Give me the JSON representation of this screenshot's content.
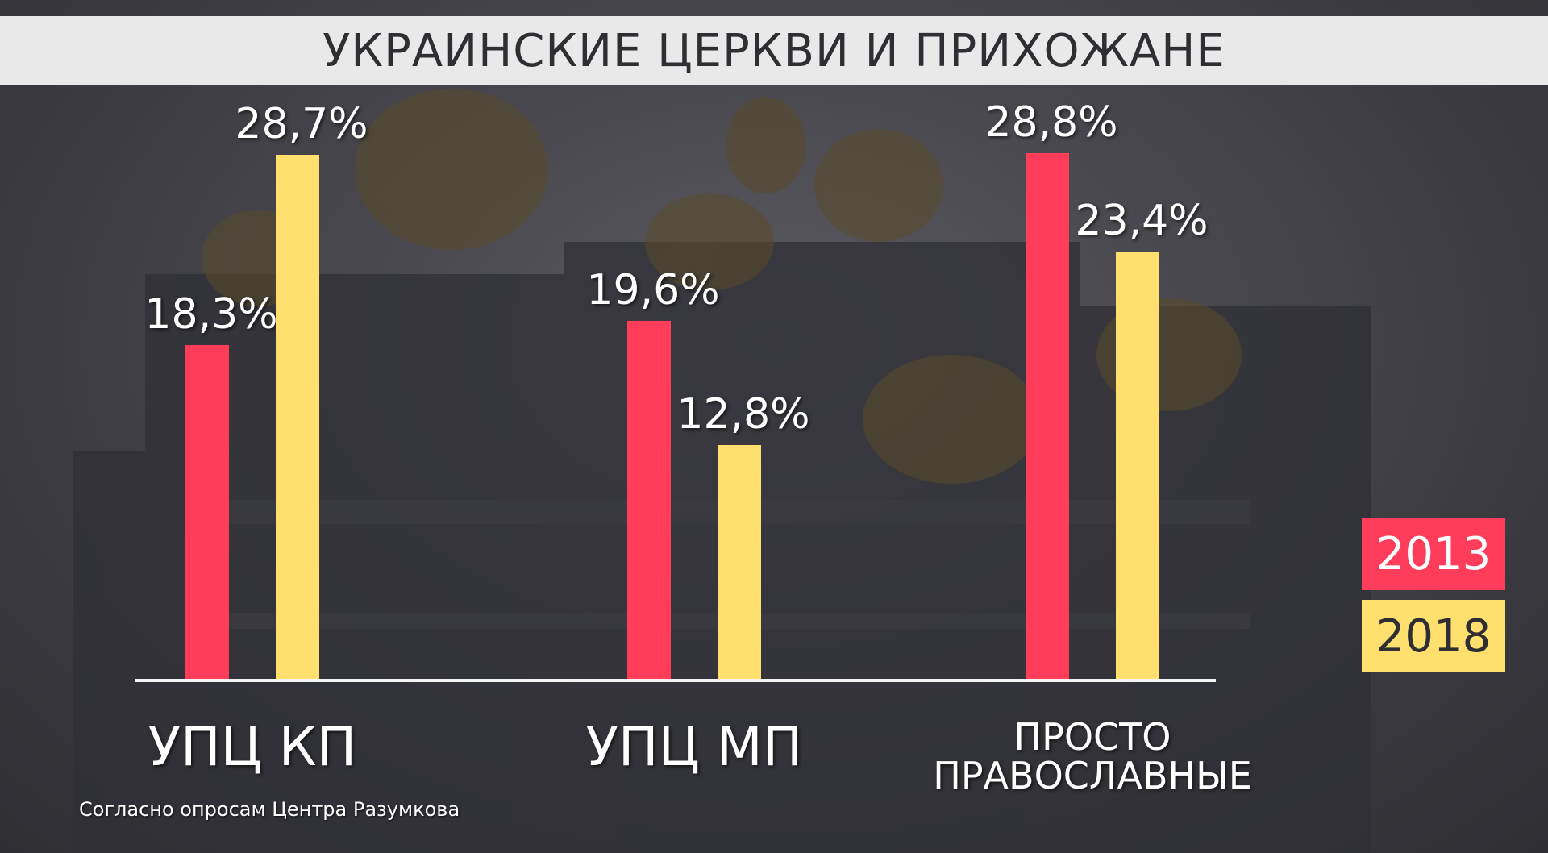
{
  "chart_data": {
    "type": "bar",
    "title": "УКРАИНСКИЕ ЦЕРКВИ И ПРИХОЖАНЕ",
    "categories": [
      "УПЦ КП",
      "УПЦ МП",
      "ПРОСТО ПРАВОСЛАВНЫЕ"
    ],
    "series": [
      {
        "name": "2013",
        "values": [
          18.3,
          19.6,
          28.8
        ],
        "labels": [
          "18,3%",
          "19,6%",
          "28,8%"
        ],
        "color": "#ff3d5a"
      },
      {
        "name": "2018",
        "values": [
          28.7,
          12.8,
          23.4
        ],
        "labels": [
          "28,7%",
          "12,8%",
          "23,4%"
        ],
        "color": "#ffe06e"
      }
    ],
    "ylim": [
      0,
      30
    ],
    "grid": false,
    "legend": "bottom-right",
    "xlabel": "",
    "ylabel": ""
  },
  "category_lines": [
    [
      "УПЦ КП"
    ],
    [
      "УПЦ МП"
    ],
    [
      "ПРОСТО",
      "ПРАВОСЛАВНЫЕ"
    ]
  ],
  "source": "Согласно опросам Центра Разумкова",
  "colors": {
    "title_bar": "#e9e9ea",
    "title_text": "#2e2e33",
    "baseline": "#f4f4f4",
    "legend_2013_text": "#ffffff",
    "legend_2018_text": "#2e2e33"
  }
}
